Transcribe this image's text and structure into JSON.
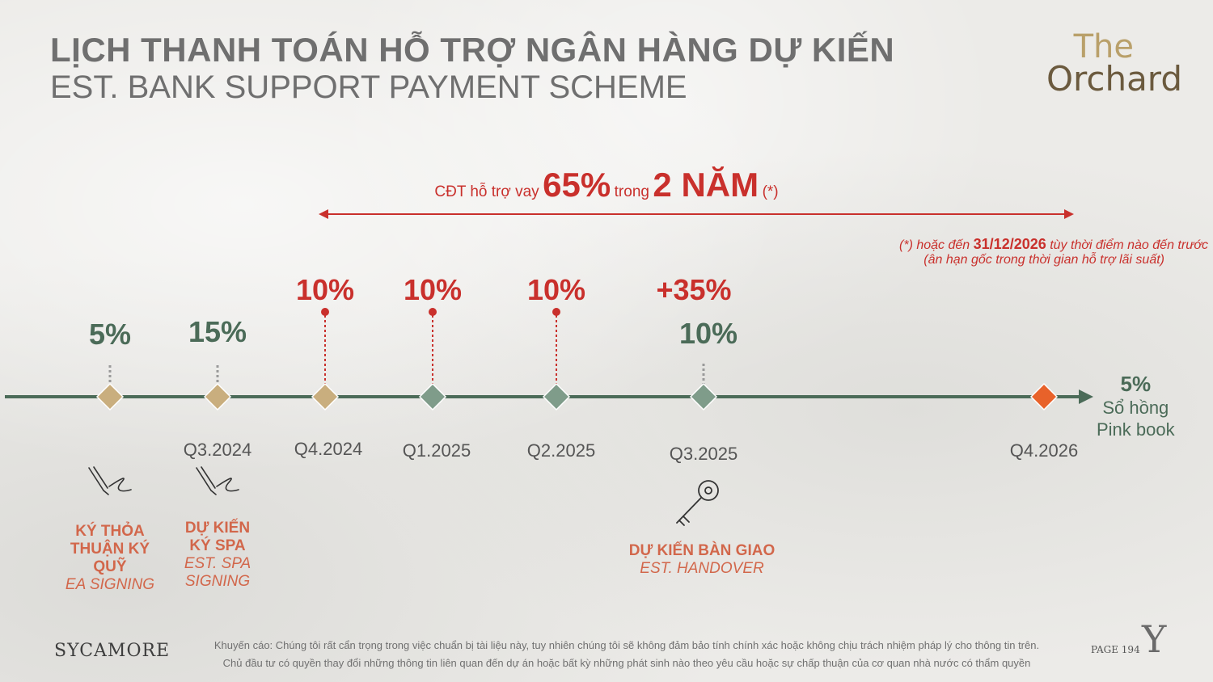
{
  "header": {
    "title_vn": "LỊCH THANH TOÁN HỖ TRỢ NGÂN HÀNG DỰ KIẾN",
    "title_en": "EST. BANK SUPPORT PAYMENT SCHEME",
    "logo_line1": "The",
    "logo_line2": "Orchard"
  },
  "support": {
    "prefix": "CĐT hỗ trợ vay",
    "percent": "65%",
    "mid": "trong",
    "duration": "2 NĂM",
    "suffix": "(*)",
    "note_line1_pre": "(*) hoặc  đến",
    "note_date": "31/12/2026",
    "note_line1_post": "tùy thời điểm nào đến trước",
    "note_line2": "(ân hạn gốc trong thời gian hỗ trợ lãi suất)"
  },
  "milestones": [
    {
      "quarter": "",
      "pct_main": "5%",
      "pct_extra": ""
    },
    {
      "quarter": "Q3.2024",
      "pct_main": "15%",
      "pct_extra": ""
    },
    {
      "quarter": "Q4.2024",
      "pct_main": "10%",
      "pct_extra": ""
    },
    {
      "quarter": "Q1.2025",
      "pct_main": "10%",
      "pct_extra": ""
    },
    {
      "quarter": "Q2.2025",
      "pct_main": "10%",
      "pct_extra": ""
    },
    {
      "quarter": "Q3.2025",
      "pct_main": "10%",
      "pct_extra": "+35%"
    },
    {
      "quarter": "Q4.2026",
      "pct_main": "5%",
      "pct_extra": ""
    }
  ],
  "final": {
    "pct": "5%",
    "label_vn": "Sổ hồng",
    "label_en": "Pink book"
  },
  "events": {
    "ea": {
      "vn_1": "KÝ THỎA",
      "vn_2": "THUẬN KÝ",
      "vn_3": "QUỸ",
      "en": "EA SIGNING"
    },
    "spa": {
      "vn_1": "DỰ KIẾN",
      "vn_2": "KÝ SPA",
      "en_1": "EST. SPA",
      "en_2": "SIGNING"
    },
    "handover": {
      "vn": "DỰ KIẾN BÀN GIAO",
      "en": "EST. HANDOVER"
    }
  },
  "icons": {
    "sign": "pen-signature-icon",
    "key": "key-icon"
  },
  "colors": {
    "green": "#4b6b58",
    "red": "#c9302c",
    "tan": "#c9ae7e",
    "orange": "#e8622a",
    "event": "#d2674b"
  },
  "footer": {
    "brand": "SYCAMORE",
    "disclaimer_1": "Khuyến cáo: Chúng tôi rất cẩn trọng trong việc chuẩn bị tài liệu này, tuy nhiên chúng tôi sẽ không đảm bảo tính chính xác hoặc không chịu trách nhiệm pháp lý cho thông tin trên.",
    "disclaimer_2": "Chủ đầu tư có quyền thay đổi những thông tin liên quan đến dự án hoặc bất kỳ những phát sinh nào theo yêu cầu hoặc sự chấp thuận của cơ quan nhà nước có thẩm quyền",
    "page": "PAGE 194",
    "mark": "Y"
  }
}
